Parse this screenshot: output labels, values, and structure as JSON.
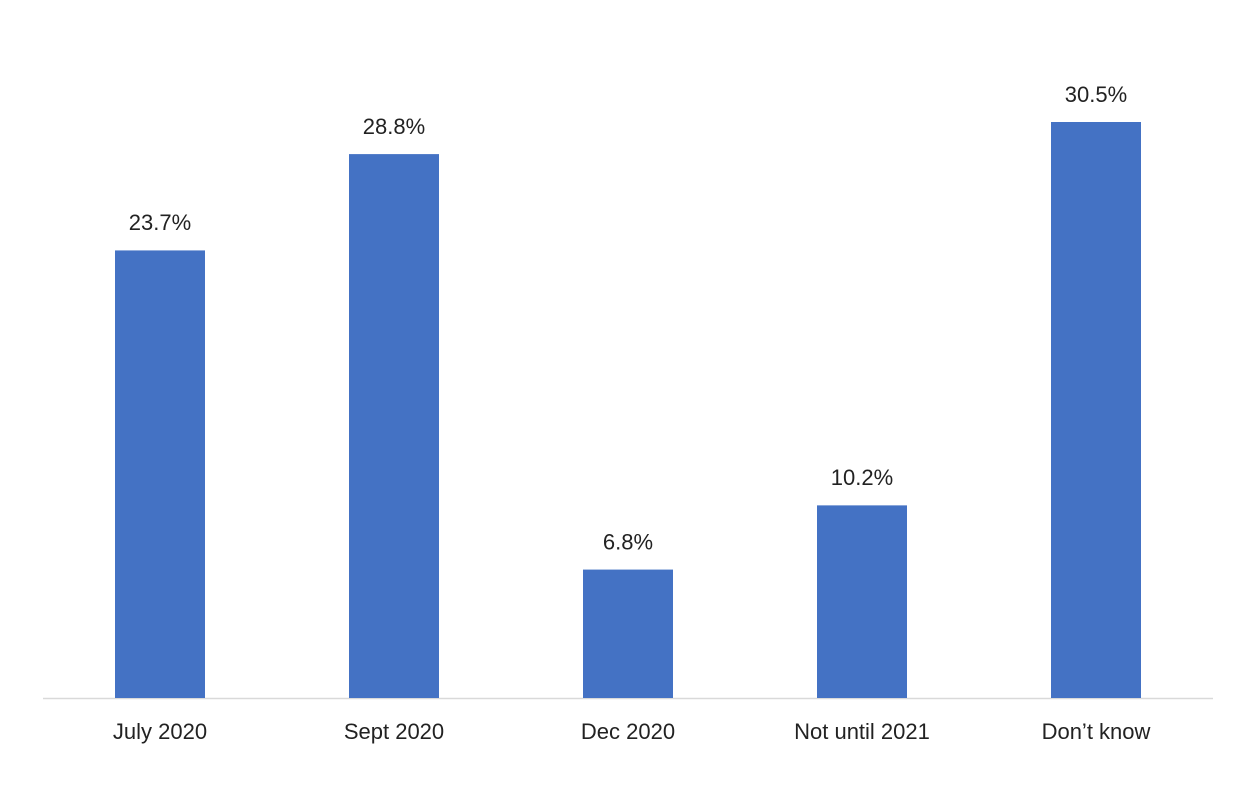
{
  "chart_data": {
    "type": "bar",
    "categories": [
      "July 2020",
      "Sept 2020",
      "Dec 2020",
      "Not until 2021",
      "Don’t know"
    ],
    "values": [
      23.7,
      28.8,
      6.8,
      10.2,
      30.5
    ],
    "value_labels": [
      "23.7%",
      "28.8%",
      "6.8%",
      "10.2%",
      "30.5%"
    ],
    "color": "#4472c4"
  }
}
